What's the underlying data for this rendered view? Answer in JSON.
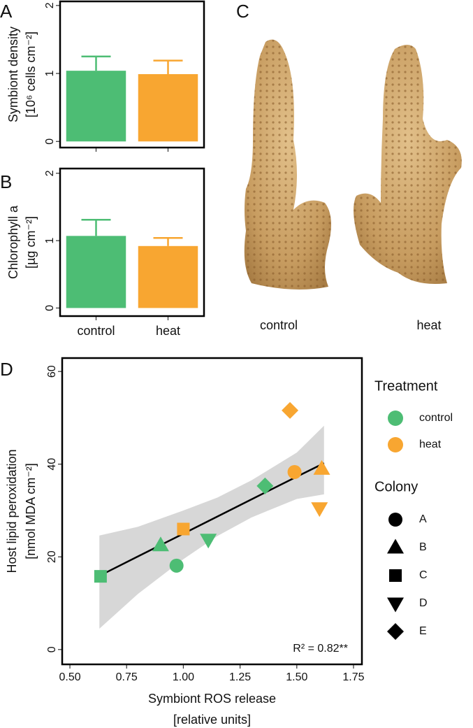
{
  "chart_data": [
    {
      "type": "bar",
      "panel": "A",
      "y_label": [
        "Symbiont density",
        "[10⁶ cells cm⁻²]"
      ],
      "categories": [
        null,
        null
      ],
      "values": [
        1.04,
        0.99
      ],
      "errors": [
        0.21,
        0.2
      ],
      "colors": [
        "#4dbd74",
        "#f8a631"
      ],
      "ylim": [
        -0.09,
        2.06
      ],
      "yticks": [
        0,
        1,
        2
      ]
    },
    {
      "type": "bar",
      "panel": "B",
      "y_label": [
        "Chlorophyll a",
        "[µg cm⁻²]"
      ],
      "categories": [
        "control",
        "heat"
      ],
      "values": [
        1.07,
        0.92
      ],
      "errors": [
        0.24,
        0.12
      ],
      "colors": [
        "#4dbd74",
        "#f8a631"
      ],
      "ylim": [
        -0.12,
        2.07
      ],
      "yticks": [
        0,
        1,
        2
      ]
    },
    {
      "type": "image",
      "panel": "C",
      "labels": [
        "control",
        "heat"
      ]
    },
    {
      "type": "scatter",
      "panel": "D",
      "x_label": [
        "Symbiont ROS release",
        "[relative units]"
      ],
      "y_label": [
        "Host lipid peroxidation",
        "[nmol MDA cm⁻²]"
      ],
      "xlim": [
        0.466,
        1.787
      ],
      "ylim": [
        -3.2,
        62.9
      ],
      "xticks": [
        {
          "value": 0.5,
          "label": "0.50"
        },
        0.75,
        {
          "value": 1,
          "label": "1.00"
        },
        1.25,
        {
          "value": 1.5,
          "label": "1.50"
        },
        1.75
      ],
      "yticks": [
        0,
        20,
        40,
        60
      ],
      "legend_title": "Treatment",
      "shape_legend_title": "Colony",
      "colonies": [
        {
          "name": "A",
          "shape": "circle"
        },
        {
          "name": "B",
          "shape": "triangle"
        },
        {
          "name": "C",
          "shape": "square"
        },
        {
          "name": "D",
          "shape": "triangle-down"
        },
        {
          "name": "E",
          "shape": "diamond"
        }
      ],
      "series": [
        {
          "name": "control",
          "color": "#4dbd74",
          "x": [
            0.97,
            0.9,
            0.635,
            1.11,
            1.36
          ],
          "values": [
            18.1,
            22.5,
            15.8,
            23.7,
            35.3
          ]
        },
        {
          "name": "heat",
          "color": "#f8a631",
          "x": [
            1.49,
            1.61,
            1.0,
            1.6,
            1.47
          ],
          "values": [
            38.3,
            39.0,
            26.0,
            30.5,
            51.6
          ]
        }
      ],
      "fit": {
        "x": [
          0.63,
          0.8,
          1.0,
          1.15,
          1.3,
          1.5,
          1.62
        ],
        "y": [
          15.9,
          20.1,
          25.0,
          28.7,
          32.4,
          37.3,
          40.2
        ],
        "lower": [
          4.5,
          12,
          19.5,
          24.5,
          28.5,
          32.5,
          33.5
        ],
        "upper": [
          24.6,
          26.5,
          30,
          32.8,
          36.5,
          42.5,
          48.3
        ]
      },
      "annotation": "R² = 0.82**"
    }
  ]
}
